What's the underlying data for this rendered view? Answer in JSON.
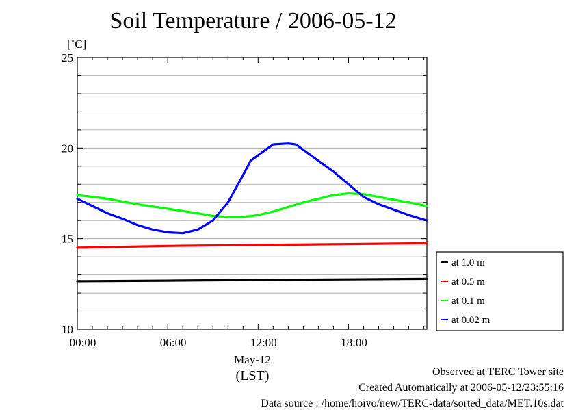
{
  "chart_data": {
    "type": "line",
    "title": "Soil Temperature / 2006-05-12",
    "ylabel": "[˚C]",
    "xlabel_date": "May-12",
    "xlabel_zone": "(LST)",
    "ylim": [
      10,
      25
    ],
    "xlim": [
      0,
      23.2
    ],
    "yticks": [
      10,
      15,
      20,
      25
    ],
    "xticks": [
      {
        "value": 0,
        "label": "00:00"
      },
      {
        "value": 6,
        "label": "06:00"
      },
      {
        "value": 12,
        "label": "12:00"
      },
      {
        "value": 18,
        "label": "18:00"
      }
    ],
    "grid": true,
    "legend_position": "right",
    "series": [
      {
        "name": "at 1.0 m",
        "color": "#000000",
        "x": [
          0,
          6,
          12,
          18,
          23.2
        ],
        "y": [
          12.65,
          12.68,
          12.72,
          12.75,
          12.78
        ]
      },
      {
        "name": "at 0.5 m",
        "color": "#ff0000",
        "x": [
          0,
          6,
          12,
          18,
          23.2
        ],
        "y": [
          14.5,
          14.6,
          14.65,
          14.7,
          14.75
        ]
      },
      {
        "name": "at 0.1 m",
        "color": "#00ff00",
        "x": [
          0,
          2,
          4,
          6,
          8,
          9,
          10,
          11,
          12,
          13,
          14,
          15,
          16,
          17,
          18,
          19,
          20,
          21,
          22,
          23.2
        ],
        "y": [
          17.4,
          17.2,
          16.9,
          16.65,
          16.4,
          16.25,
          16.2,
          16.2,
          16.3,
          16.5,
          16.75,
          17.0,
          17.2,
          17.4,
          17.5,
          17.45,
          17.3,
          17.15,
          17.0,
          16.8
        ]
      },
      {
        "name": "at 0.02 m",
        "color": "#0000ff",
        "x": [
          0,
          1,
          2,
          3,
          4,
          5,
          6,
          7,
          8,
          9,
          10,
          11,
          11.5,
          12,
          13,
          14,
          14.5,
          15,
          16,
          17,
          18,
          19,
          20,
          21,
          22,
          23.2
        ],
        "y": [
          17.2,
          16.8,
          16.4,
          16.1,
          15.75,
          15.5,
          15.35,
          15.3,
          15.5,
          16.0,
          17.0,
          18.5,
          19.3,
          19.6,
          20.2,
          20.25,
          20.2,
          19.9,
          19.3,
          18.7,
          18.0,
          17.3,
          16.9,
          16.6,
          16.3,
          16.0
        ]
      }
    ]
  },
  "footer": {
    "line1": "Observed at TERC Tower site",
    "line2": "Created Automatically at 2006-05-12/23:55:16",
    "line3": "Data source : /home/hoivo/new/TERC-data/sorted_data/MET.10s.dat"
  }
}
